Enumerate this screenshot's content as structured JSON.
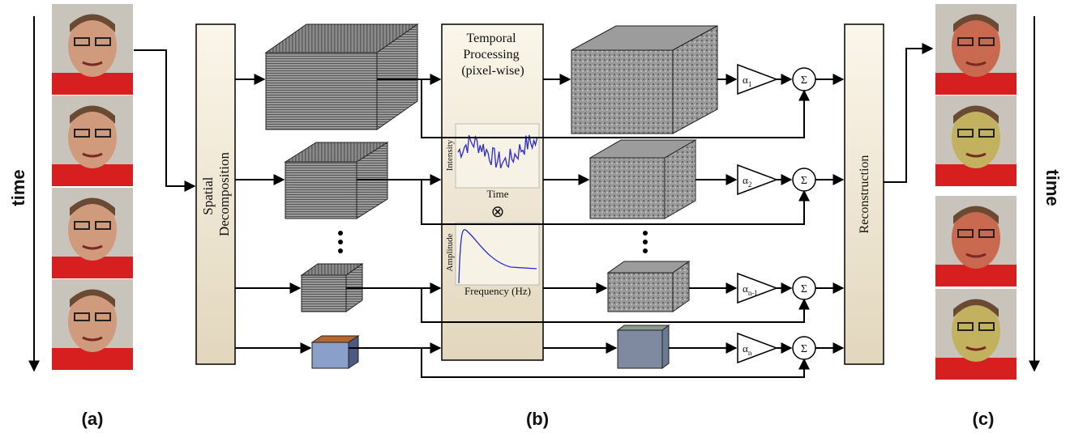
{
  "left_panel": {
    "axis_label": "time",
    "caption": "(a)"
  },
  "spatial_block": {
    "label_lines": [
      "Spatial",
      "Decomposition"
    ]
  },
  "temporal_block": {
    "title_lines": [
      "Temporal",
      "Processing",
      "(pixel-wise)"
    ],
    "signal_plot": {
      "y_label": "Intensity",
      "x_label": "Time"
    },
    "operator": "⊗",
    "filter_plot": {
      "y_label": "Amplitude",
      "x_label": "Frequency (Hz)"
    },
    "caption": "(b)"
  },
  "amplifiers": [
    {
      "symbol": "α",
      "subscript": "1"
    },
    {
      "symbol": "α",
      "subscript": "2"
    },
    {
      "symbol": "α",
      "subscript": "n-1"
    },
    {
      "symbol": "α",
      "subscript": "n"
    }
  ],
  "summers": [
    "Σ",
    "Σ",
    "Σ",
    "Σ"
  ],
  "reconstruction_block": {
    "label": "Reconstruction"
  },
  "right_panel": {
    "axis_label": "time",
    "caption": "(c)"
  }
}
